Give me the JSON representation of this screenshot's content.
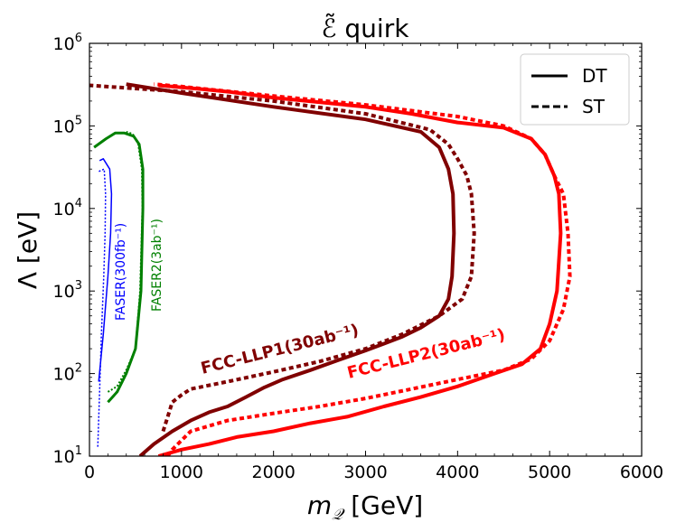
{
  "chart_data": {
    "type": "line",
    "title": "ℰ̃ quirk",
    "xlabel_main": "m",
    "xlabel_sub": "𝒬",
    "xlabel_unit": " [GeV]",
    "ylabel": "Λ [eV]",
    "xlim": [
      0,
      6000
    ],
    "ylim": [
      10,
      1000000
    ],
    "yscale": "log",
    "x_ticks": [
      0,
      1000,
      2000,
      3000,
      4000,
      5000,
      6000
    ],
    "x_tick_labels": [
      "0",
      "1000",
      "2000",
      "3000",
      "4000",
      "5000",
      "6000"
    ],
    "y_ticks": [
      10,
      100,
      1000,
      10000,
      100000,
      1000000
    ],
    "y_tick_labels": [
      {
        "base": "10",
        "exp": "1"
      },
      {
        "base": "10",
        "exp": "2"
      },
      {
        "base": "10",
        "exp": "3"
      },
      {
        "base": "10",
        "exp": "4"
      },
      {
        "base": "10",
        "exp": "5"
      },
      {
        "base": "10",
        "exp": "6"
      }
    ],
    "legend": {
      "position": "top-right",
      "entries": [
        {
          "label": "DT",
          "style": "solid"
        },
        {
          "label": "ST",
          "style": "dashed"
        }
      ]
    },
    "annotations": [
      {
        "text": "FASER(300fb⁻¹)",
        "color": "#0000ff"
      },
      {
        "text": "FASER2(3ab⁻¹)",
        "color": "#008000"
      },
      {
        "text": "FCC-LLP1(30ab⁻¹)",
        "color": "#800000"
      },
      {
        "text": "FCC-LLP2(30ab⁻¹)",
        "color": "#ff0000"
      }
    ],
    "series": [
      {
        "name": "FASER DT",
        "color": "#0000ff",
        "style": "solid",
        "width": 1.5,
        "points": [
          [
            100,
            80
          ],
          [
            150,
            300
          ],
          [
            200,
            1500
          ],
          [
            230,
            5000
          ],
          [
            240,
            15000
          ],
          [
            220,
            30000
          ],
          [
            150,
            40000
          ],
          [
            110,
            38000
          ]
        ]
      },
      {
        "name": "FASER ST",
        "color": "#0000ff",
        "style": "dotted",
        "width": 1.5,
        "points": [
          [
            90,
            13
          ],
          [
            110,
            60
          ],
          [
            130,
            300
          ],
          [
            155,
            1500
          ],
          [
            170,
            5000
          ],
          [
            175,
            15000
          ],
          [
            160,
            30000
          ],
          [
            100,
            28000
          ]
        ]
      },
      {
        "name": "FASER2 DT",
        "color": "#008000",
        "style": "solid",
        "width": 3,
        "points": [
          [
            200,
            45
          ],
          [
            300,
            60
          ],
          [
            400,
            100
          ],
          [
            500,
            200
          ],
          [
            560,
            1000
          ],
          [
            580,
            10000
          ],
          [
            580,
            30000
          ],
          [
            540,
            60000
          ],
          [
            480,
            75000
          ],
          [
            380,
            82000
          ],
          [
            280,
            82000
          ],
          [
            180,
            70000
          ],
          [
            50,
            55000
          ]
        ]
      },
      {
        "name": "FASER2 ST",
        "color": "#008000",
        "style": "dotted",
        "width": 2,
        "points": [
          [
            200,
            60
          ],
          [
            300,
            70
          ],
          [
            400,
            110
          ],
          [
            500,
            200
          ],
          [
            550,
            1000
          ],
          [
            575,
            10000
          ],
          [
            570,
            30000
          ],
          [
            530,
            60000
          ],
          [
            470,
            80000
          ],
          [
            400,
            85000
          ]
        ]
      },
      {
        "name": "FCC-LLP1 DT",
        "color": "#800000",
        "style": "solid",
        "width": 4,
        "points": [
          [
            550,
            10
          ],
          [
            700,
            14
          ],
          [
            900,
            20
          ],
          [
            1100,
            27
          ],
          [
            1300,
            34
          ],
          [
            1500,
            40
          ],
          [
            1700,
            52
          ],
          [
            1900,
            68
          ],
          [
            2100,
            85
          ],
          [
            2400,
            110
          ],
          [
            2700,
            145
          ],
          [
            3000,
            190
          ],
          [
            3200,
            230
          ],
          [
            3400,
            280
          ],
          [
            3600,
            360
          ],
          [
            3800,
            500
          ],
          [
            3900,
            800
          ],
          [
            3940,
            1500
          ],
          [
            3960,
            5000
          ],
          [
            3950,
            15000
          ],
          [
            3900,
            30000
          ],
          [
            3800,
            55000
          ],
          [
            3600,
            85000
          ],
          [
            3000,
            120000
          ],
          [
            2000,
            170000
          ],
          [
            1000,
            250000
          ],
          [
            400,
            320000
          ]
        ]
      },
      {
        "name": "FCC-LLP1 ST",
        "color": "#800000",
        "style": "dotted",
        "width": 4,
        "points": [
          [
            800,
            20
          ],
          [
            850,
            30
          ],
          [
            900,
            45
          ],
          [
            1000,
            55
          ],
          [
            1100,
            65
          ],
          [
            1500,
            80
          ],
          [
            2000,
            105
          ],
          [
            2500,
            140
          ],
          [
            3000,
            200
          ],
          [
            3400,
            300
          ],
          [
            3800,
            500
          ],
          [
            4050,
            800
          ],
          [
            4150,
            1500
          ],
          [
            4180,
            5000
          ],
          [
            4150,
            15000
          ],
          [
            4100,
            25000
          ],
          [
            4000,
            40000
          ],
          [
            3900,
            60000
          ],
          [
            3700,
            90000
          ],
          [
            3000,
            140000
          ],
          [
            2000,
            200000
          ],
          [
            1000,
            260000
          ],
          [
            0,
            310000
          ]
        ]
      },
      {
        "name": "FCC-LLP2 DT",
        "color": "#ff0000",
        "style": "solid",
        "width": 4,
        "points": [
          [
            750,
            10
          ],
          [
            1000,
            12
          ],
          [
            1300,
            14
          ],
          [
            1600,
            17
          ],
          [
            2000,
            20
          ],
          [
            2400,
            25
          ],
          [
            2800,
            30
          ],
          [
            3200,
            40
          ],
          [
            3600,
            52
          ],
          [
            4000,
            70
          ],
          [
            4400,
            100
          ],
          [
            4700,
            130
          ],
          [
            4900,
            200
          ],
          [
            5000,
            400
          ],
          [
            5080,
            1000
          ],
          [
            5120,
            5000
          ],
          [
            5100,
            15000
          ],
          [
            5050,
            25000
          ],
          [
            4950,
            45000
          ],
          [
            4800,
            70000
          ],
          [
            4500,
            95000
          ],
          [
            4000,
            110000
          ],
          [
            3500,
            140000
          ],
          [
            3000,
            170000
          ],
          [
            2000,
            220000
          ],
          [
            1500,
            260000
          ],
          [
            1200,
            280000
          ],
          [
            750,
            310000
          ]
        ]
      },
      {
        "name": "FCC-LLP2 ST",
        "color": "#ff0000",
        "style": "dotted",
        "width": 4,
        "points": [
          [
            850,
            10
          ],
          [
            900,
            12
          ],
          [
            1100,
            20
          ],
          [
            1500,
            27
          ],
          [
            2000,
            33
          ],
          [
            2500,
            40
          ],
          [
            3000,
            50
          ],
          [
            3500,
            65
          ],
          [
            4000,
            85
          ],
          [
            4500,
            110
          ],
          [
            4800,
            150
          ],
          [
            5000,
            250
          ],
          [
            5150,
            600
          ],
          [
            5220,
            1500
          ],
          [
            5200,
            5000
          ],
          [
            5150,
            15000
          ],
          [
            5050,
            25000
          ],
          [
            4950,
            45000
          ],
          [
            4800,
            70000
          ],
          [
            4500,
            100000
          ],
          [
            4000,
            130000
          ],
          [
            3000,
            180000
          ],
          [
            2000,
            230000
          ],
          [
            1000,
            300000
          ],
          [
            700,
            320000
          ]
        ]
      }
    ]
  }
}
